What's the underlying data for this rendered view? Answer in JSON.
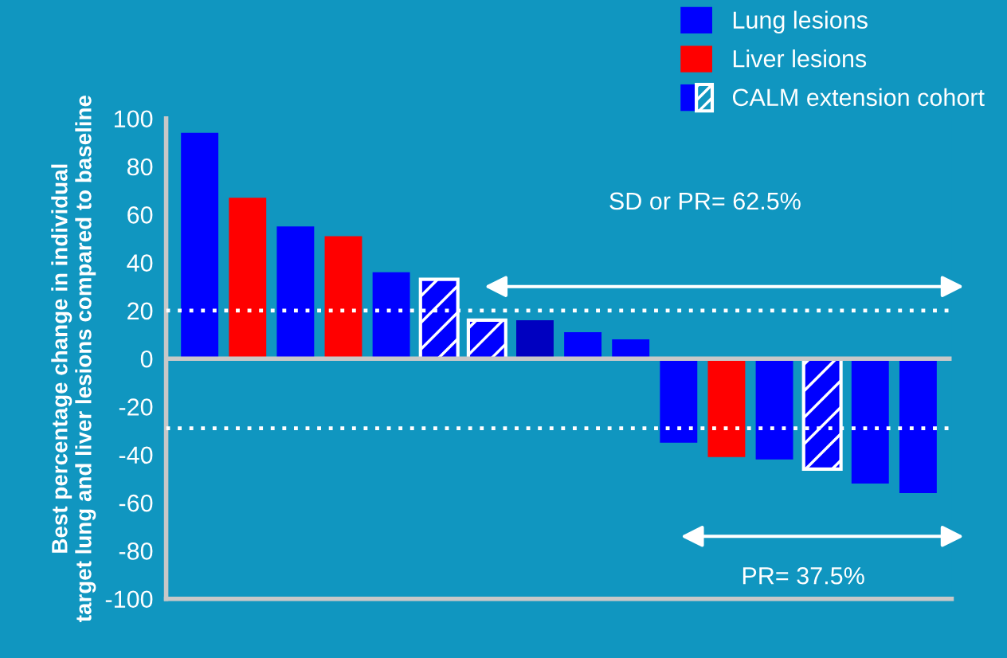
{
  "chart_data": {
    "type": "bar",
    "ylabel": "Best percentage change in individual\ntarget lung and liver lesions compared to baseline",
    "categories": [
      null,
      null,
      null,
      null,
      null,
      null,
      null,
      null,
      null,
      null,
      null,
      null,
      null,
      null,
      null,
      null
    ],
    "series": [
      {
        "name": "Lung lesions",
        "color": "#0000ff",
        "colors": [
          "#0000ff",
          null,
          "#0000ff",
          null,
          "#0000ff",
          null,
          null,
          "#0000c0",
          "#0000ff",
          "#0000ff",
          "#0000ff",
          null,
          "#0000ff",
          null,
          "#0000ff",
          "#0000ff"
        ],
        "values": [
          94,
          null,
          55,
          null,
          36,
          null,
          null,
          16,
          11,
          8,
          -35,
          null,
          -42,
          null,
          -52,
          -56
        ]
      },
      {
        "name": "Liver lesions",
        "color": "#ff0000",
        "values": [
          null,
          67,
          null,
          51,
          null,
          null,
          null,
          null,
          null,
          null,
          null,
          -41,
          null,
          null,
          null,
          null
        ]
      },
      {
        "name": "CALM extension cohort",
        "color": "#0000ff",
        "values": [
          null,
          null,
          null,
          null,
          null,
          33,
          16,
          null,
          null,
          null,
          null,
          null,
          null,
          -46,
          null,
          null
        ]
      }
    ],
    "ylim": [
      -100,
      100
    ],
    "yticks": [
      -100,
      -80,
      -60,
      -40,
      -20,
      0,
      20,
      40,
      60,
      80,
      100
    ],
    "ref_lines": [
      {
        "axis": "y",
        "value": 20,
        "color": "#ffffff",
        "line_style": "dotted"
      },
      {
        "axis": "y",
        "value": -29,
        "color": "#ffffff",
        "line_style": "dotted"
      }
    ],
    "annotations": [
      "SD or PR= 62.5%",
      "PR= 37.5%"
    ],
    "tick_labels": "y",
    "grid": false,
    "legend": "top right"
  }
}
